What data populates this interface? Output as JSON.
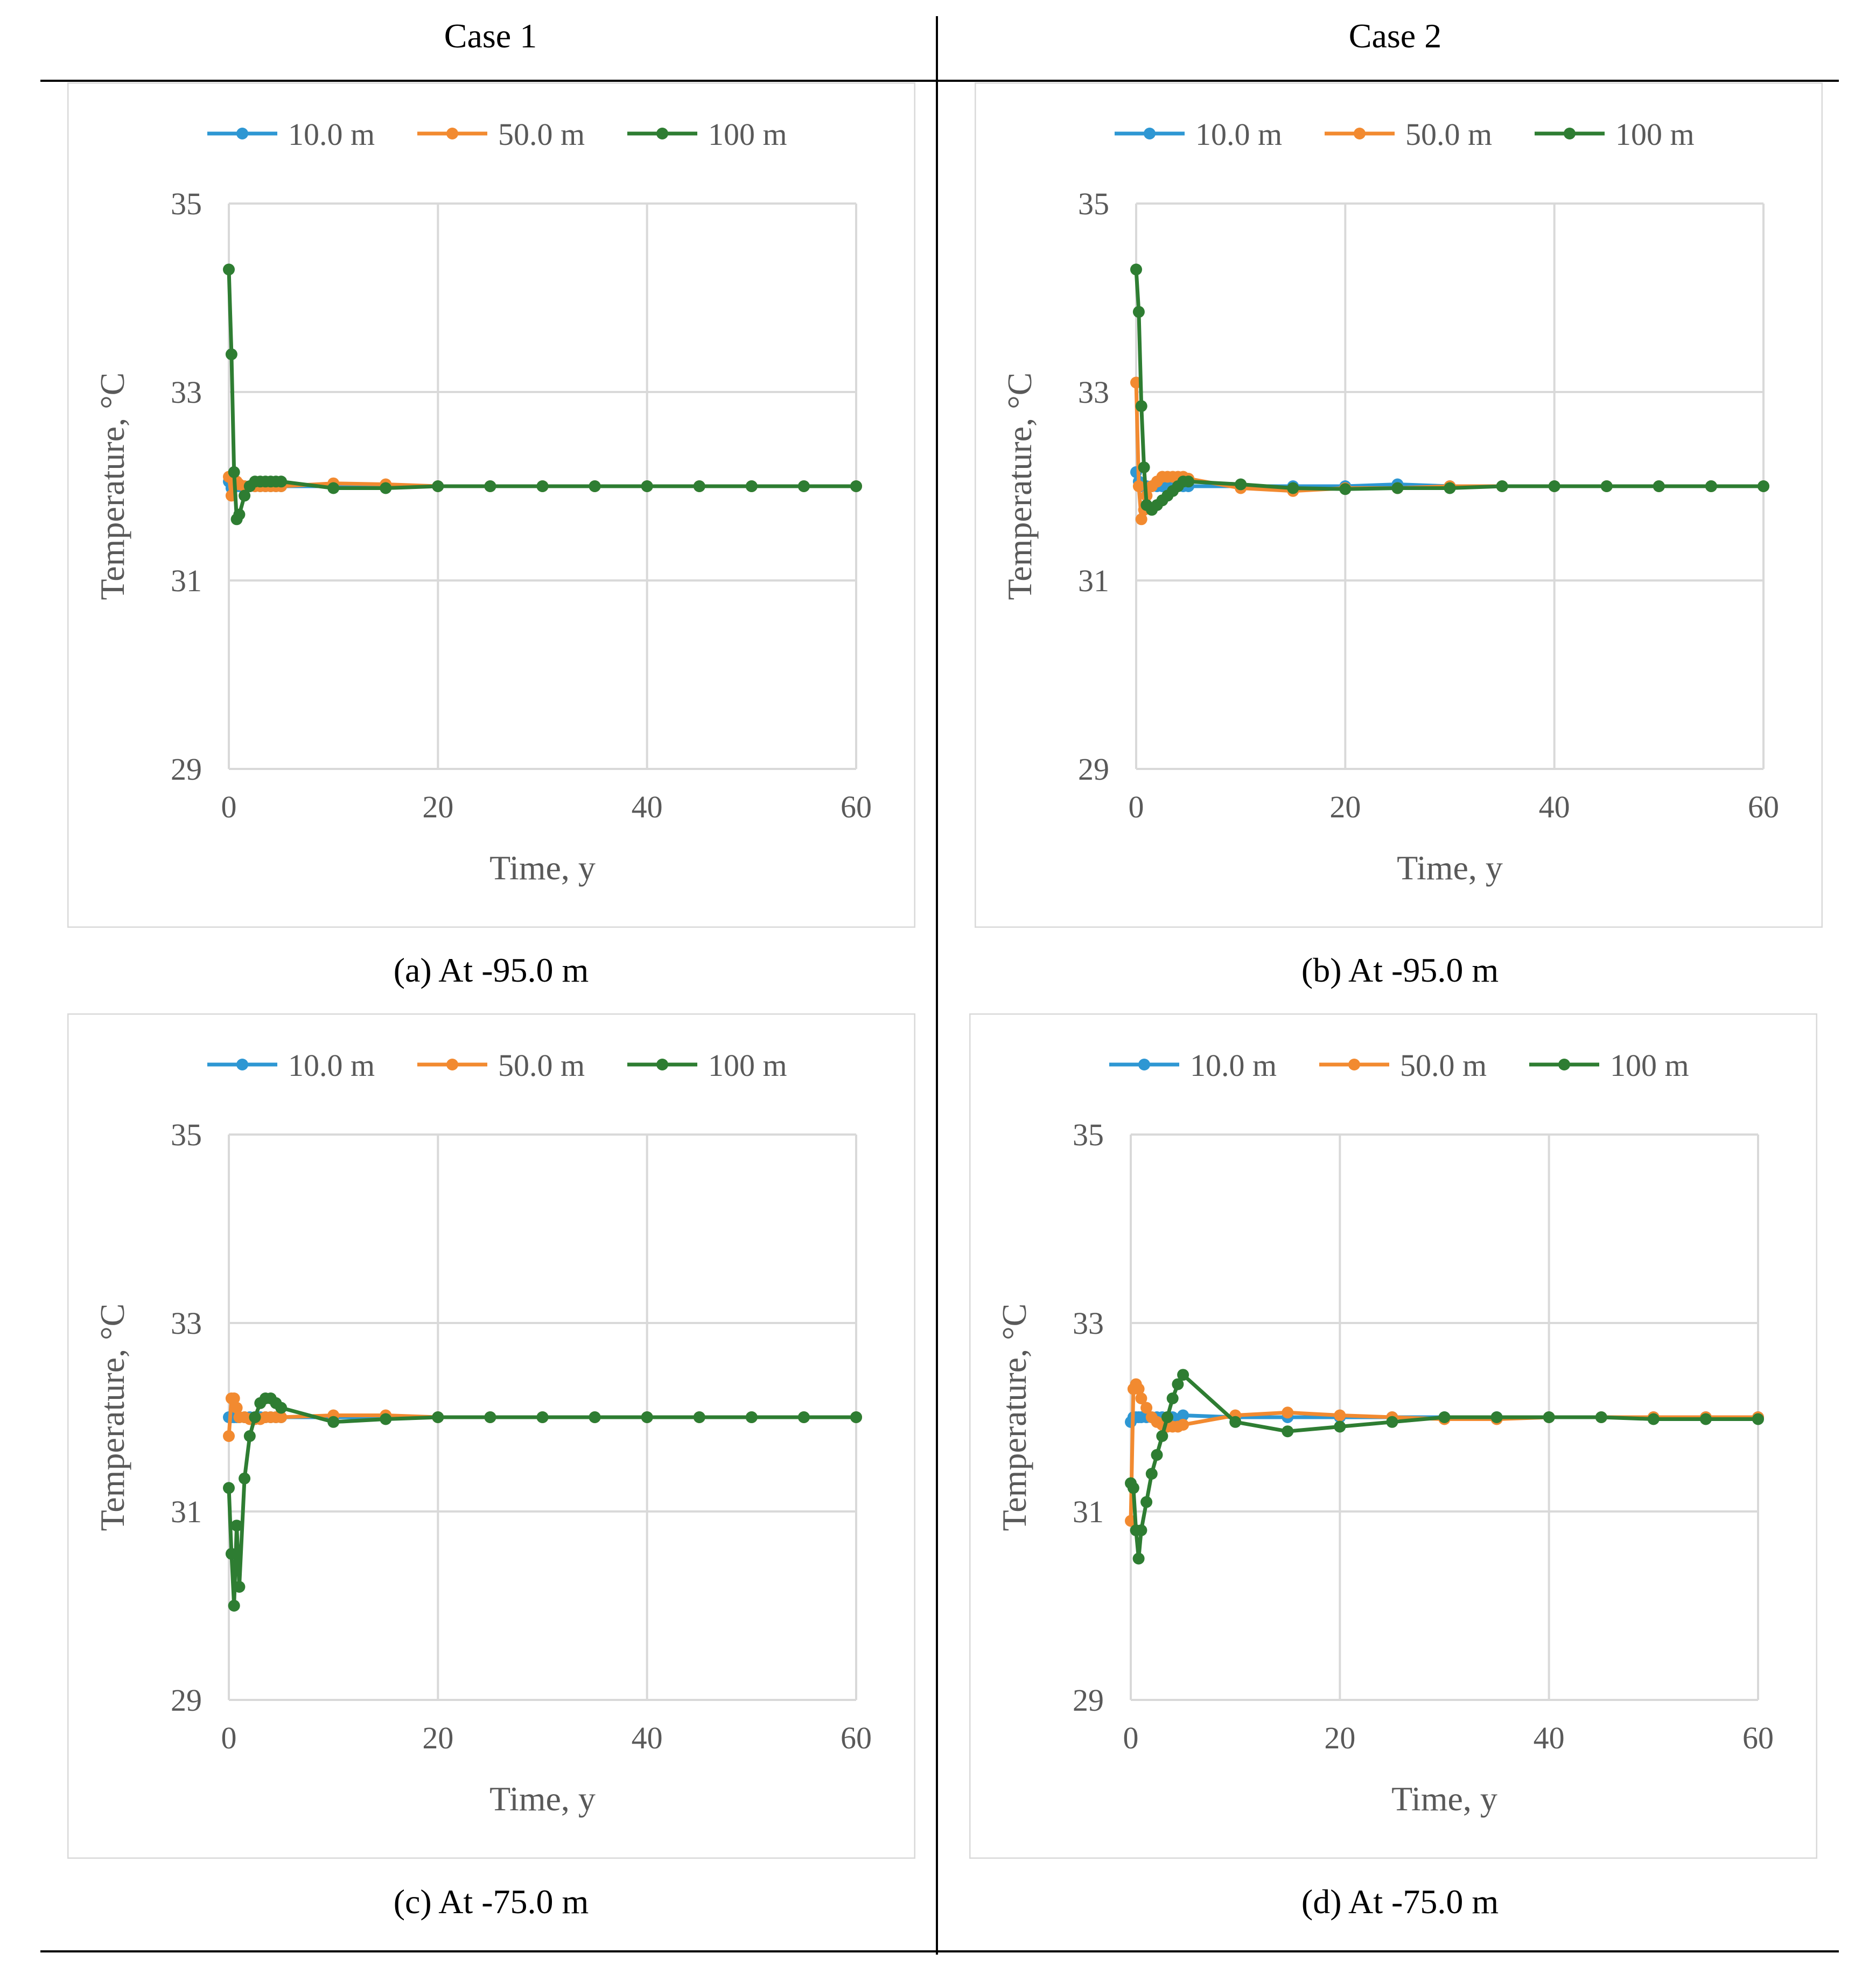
{
  "header": {
    "case1": "Case 1",
    "case2": "Case 2"
  },
  "legend_colors": {
    "10.0 m": "#2e97d3",
    "50.0 m": "#f28a30",
    "100 m": "#2e7d32"
  },
  "chart_data": [
    {
      "id": "a",
      "type": "line",
      "caption": "(a) At -95.0 m",
      "xlabel": "Time,  y",
      "ylabel": "Temperature, °C",
      "xlim": [
        0,
        60
      ],
      "ylim": [
        29,
        35
      ],
      "xticks": [
        "0",
        "20",
        "40",
        "60"
      ],
      "yticks": [
        "29",
        "31",
        "33",
        "35"
      ],
      "series": [
        {
          "name": "10.0 m",
          "x": [
            0,
            0.25,
            0.5,
            0.75,
            1,
            1.5,
            2,
            2.5,
            3,
            3.5,
            4,
            4.5,
            5,
            10,
            15,
            20,
            25,
            30,
            35,
            40,
            45,
            50,
            55,
            60
          ],
          "y": [
            32.05,
            31.98,
            32.0,
            32.0,
            32.0,
            32.0,
            32.0,
            32.0,
            32.0,
            32.0,
            32.0,
            32.0,
            32.0,
            32.0,
            32.0,
            32.0,
            32.0,
            32.0,
            32.0,
            32.0,
            32.0,
            32.0,
            32.0,
            32.0
          ]
        },
        {
          "name": "50.0 m",
          "x": [
            0,
            0.25,
            0.5,
            0.75,
            1,
            1.5,
            2,
            2.5,
            3,
            3.5,
            4,
            4.5,
            5,
            10,
            15,
            20,
            25,
            30,
            35,
            40,
            45,
            50,
            55,
            60
          ],
          "y": [
            32.1,
            31.9,
            32.05,
            32.05,
            32.02,
            32.0,
            32.0,
            32.0,
            32.0,
            32.0,
            32.0,
            32.0,
            32.0,
            32.03,
            32.02,
            32.0,
            32.0,
            32.0,
            32.0,
            32.0,
            32.0,
            32.0,
            32.0,
            32.0
          ]
        },
        {
          "name": "100 m",
          "x": [
            0,
            0.25,
            0.5,
            0.75,
            1,
            1.5,
            2,
            2.5,
            3,
            3.5,
            4,
            4.5,
            5,
            10,
            15,
            20,
            25,
            30,
            35,
            40,
            45,
            50,
            55,
            60
          ],
          "y": [
            34.3,
            33.4,
            32.15,
            31.65,
            31.7,
            31.9,
            32.0,
            32.05,
            32.05,
            32.05,
            32.05,
            32.05,
            32.05,
            31.98,
            31.98,
            32.0,
            32.0,
            32.0,
            32.0,
            32.0,
            32.0,
            32.0,
            32.0,
            32.0
          ]
        }
      ]
    },
    {
      "id": "b",
      "type": "line",
      "caption": "(b) At -95.0 m",
      "xlabel": "Time,  y",
      "ylabel": "Temperature, °C",
      "xlim": [
        0,
        60
      ],
      "ylim": [
        29,
        35
      ],
      "xticks": [
        "0",
        "20",
        "40",
        "60"
      ],
      "yticks": [
        "29",
        "31",
        "33",
        "35"
      ],
      "series": [
        {
          "name": "10.0 m",
          "x": [
            0,
            0.25,
            0.5,
            0.75,
            1,
            1.5,
            2,
            2.5,
            3,
            3.5,
            4,
            4.5,
            5,
            10,
            15,
            20,
            25,
            30,
            35,
            40,
            45,
            50,
            55,
            60
          ],
          "y": [
            32.15,
            32.05,
            32.0,
            32.0,
            32.0,
            32.0,
            32.0,
            32.0,
            32.0,
            32.0,
            32.0,
            32.0,
            32.0,
            32.0,
            32.0,
            32.0,
            32.02,
            32.0,
            32.0,
            32.0,
            32.0,
            32.0,
            32.0,
            32.0
          ]
        },
        {
          "name": "50.0 m",
          "x": [
            0,
            0.25,
            0.5,
            0.75,
            1,
            1.5,
            2,
            2.5,
            3,
            3.5,
            4,
            4.5,
            5,
            10,
            15,
            20,
            25,
            30,
            35,
            40,
            45,
            50,
            55,
            60
          ],
          "y": [
            33.1,
            32.0,
            31.65,
            31.75,
            31.9,
            32.0,
            32.05,
            32.1,
            32.1,
            32.1,
            32.1,
            32.1,
            32.08,
            31.98,
            31.95,
            31.98,
            31.98,
            32.0,
            32.0,
            32.0,
            32.0,
            32.0,
            32.0,
            32.0
          ]
        },
        {
          "name": "100 m",
          "x": [
            0,
            0.25,
            0.5,
            0.75,
            1,
            1.5,
            2,
            2.5,
            3,
            3.5,
            4,
            4.5,
            5,
            10,
            15,
            20,
            25,
            30,
            35,
            40,
            45,
            50,
            55,
            60
          ],
          "y": [
            34.3,
            33.85,
            32.85,
            32.2,
            31.8,
            31.75,
            31.8,
            31.85,
            31.9,
            31.95,
            32.0,
            32.05,
            32.05,
            32.02,
            31.98,
            31.97,
            31.98,
            31.98,
            32.0,
            32.0,
            32.0,
            32.0,
            32.0,
            32.0
          ]
        }
      ]
    },
    {
      "id": "c",
      "type": "line",
      "caption": "(c) At -75.0 m",
      "xlabel": "Time,  y",
      "ylabel": "Temperature, °C",
      "xlim": [
        0,
        60
      ],
      "ylim": [
        29,
        35
      ],
      "xticks": [
        "0",
        "20",
        "40",
        "60"
      ],
      "yticks": [
        "29",
        "31",
        "33",
        "35"
      ],
      "series": [
        {
          "name": "10.0 m",
          "x": [
            0,
            0.25,
            0.5,
            0.75,
            1,
            1.5,
            2,
            2.5,
            3,
            3.5,
            4,
            4.5,
            5,
            10,
            15,
            20,
            25,
            30,
            35,
            40,
            45,
            50,
            55,
            60
          ],
          "y": [
            32.0,
            32.0,
            32.0,
            32.0,
            32.0,
            32.0,
            32.0,
            32.0,
            32.0,
            32.0,
            32.0,
            32.0,
            32.0,
            32.0,
            32.0,
            32.0,
            32.0,
            32.0,
            32.0,
            32.0,
            32.0,
            32.0,
            32.0,
            32.0
          ]
        },
        {
          "name": "50.0 m",
          "x": [
            0,
            0.25,
            0.5,
            0.75,
            1,
            1.5,
            2,
            2.5,
            3,
            3.5,
            4,
            4.5,
            5,
            10,
            15,
            20,
            25,
            30,
            35,
            40,
            45,
            50,
            55,
            60
          ],
          "y": [
            31.8,
            32.2,
            32.2,
            32.1,
            32.0,
            32.0,
            31.98,
            31.98,
            31.98,
            32.0,
            32.0,
            32.0,
            32.0,
            32.02,
            32.02,
            32.0,
            32.0,
            32.0,
            32.0,
            32.0,
            32.0,
            32.0,
            32.0,
            32.0
          ]
        },
        {
          "name": "100 m",
          "x": [
            0,
            0.25,
            0.5,
            0.75,
            1,
            1.5,
            2,
            2.5,
            3,
            3.5,
            4,
            4.5,
            5,
            10,
            15,
            20,
            25,
            30,
            35,
            40,
            45,
            50,
            55,
            60
          ],
          "y": [
            31.25,
            30.55,
            30.0,
            30.85,
            30.2,
            31.35,
            31.8,
            32.0,
            32.15,
            32.2,
            32.2,
            32.15,
            32.1,
            31.95,
            31.98,
            32.0,
            32.0,
            32.0,
            32.0,
            32.0,
            32.0,
            32.0,
            32.0,
            32.0
          ]
        }
      ]
    },
    {
      "id": "d",
      "type": "line",
      "caption": "(d) At -75.0 m",
      "xlabel": "Time,  y",
      "ylabel": "Temperature, °C",
      "xlim": [
        0,
        60
      ],
      "ylim": [
        29,
        35
      ],
      "xticks": [
        "0",
        "20",
        "40",
        "60"
      ],
      "yticks": [
        "29",
        "31",
        "33",
        "35"
      ],
      "series": [
        {
          "name": "10.0 m",
          "x": [
            0,
            0.25,
            0.5,
            0.75,
            1,
            1.5,
            2,
            2.5,
            3,
            3.5,
            4,
            4.5,
            5,
            10,
            15,
            20,
            25,
            30,
            35,
            40,
            45,
            50,
            55,
            60
          ],
          "y": [
            31.95,
            32.0,
            32.0,
            32.0,
            32.0,
            32.0,
            32.0,
            32.0,
            32.0,
            32.0,
            32.0,
            31.98,
            32.02,
            32.0,
            32.0,
            32.0,
            32.0,
            32.0,
            32.0,
            32.0,
            32.0,
            32.0,
            32.0,
            32.0
          ]
        },
        {
          "name": "50.0 m",
          "x": [
            0,
            0.25,
            0.5,
            0.75,
            1,
            1.5,
            2,
            2.5,
            3,
            3.5,
            4,
            4.5,
            5,
            10,
            15,
            20,
            25,
            30,
            35,
            40,
            45,
            50,
            55,
            60
          ],
          "y": [
            30.9,
            32.3,
            32.35,
            32.3,
            32.2,
            32.1,
            32.0,
            31.95,
            31.92,
            31.9,
            31.9,
            31.9,
            31.92,
            32.02,
            32.05,
            32.02,
            32.0,
            31.98,
            31.98,
            32.0,
            32.0,
            32.0,
            32.0,
            32.0
          ]
        },
        {
          "name": "100 m",
          "x": [
            0,
            0.25,
            0.5,
            0.75,
            1,
            1.5,
            2,
            2.5,
            3,
            3.5,
            4,
            4.5,
            5,
            10,
            15,
            20,
            25,
            30,
            35,
            40,
            45,
            50,
            55,
            60
          ],
          "y": [
            31.3,
            31.25,
            30.8,
            30.5,
            30.8,
            31.1,
            31.4,
            31.6,
            31.8,
            32.0,
            32.2,
            32.35,
            32.45,
            31.95,
            31.85,
            31.9,
            31.95,
            32.0,
            32.0,
            32.0,
            32.0,
            31.98,
            31.98,
            31.98
          ]
        }
      ]
    }
  ]
}
